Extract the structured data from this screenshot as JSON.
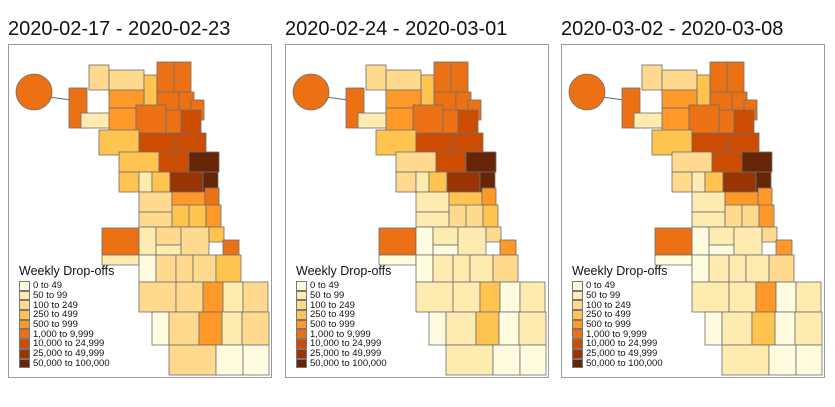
{
  "legend": {
    "title": "Weekly Drop-offs",
    "bins": [
      "0 to 49",
      "50 to 99",
      "100 to 249",
      "250 to 499",
      "500 to 999",
      "1,000 to 9,999",
      "10,000 to 24,999",
      "25,000 to 49,999",
      "50,000 to 100,000"
    ],
    "colors": [
      "#FFFBDF",
      "#FEEBB0",
      "#FED98E",
      "#FEC44F",
      "#FE9929",
      "#EC7014",
      "#CC4C02",
      "#993404",
      "#662506"
    ]
  },
  "panels": [
    {
      "title": "2020-02-17 - 2020-02-23",
      "region_bins": [
        5,
        5,
        2,
        2,
        3,
        5,
        5,
        5,
        5,
        5,
        1,
        4,
        4,
        5,
        5,
        6,
        3,
        6,
        6,
        3,
        6,
        8,
        3,
        1,
        3,
        7,
        8,
        2,
        4,
        5,
        2,
        3,
        3,
        4,
        5,
        1,
        1,
        2,
        1,
        2,
        3,
        5,
        0,
        2,
        2,
        2,
        3,
        2,
        2,
        4,
        1,
        2,
        0,
        2,
        4,
        1,
        2,
        2,
        0,
        0
      ]
    },
    {
      "title": "2020-02-24 - 2020-03-01",
      "region_bins": [
        5,
        5,
        2,
        2,
        3,
        5,
        5,
        5,
        5,
        5,
        1,
        4,
        4,
        5,
        5,
        6,
        3,
        6,
        6,
        2,
        6,
        8,
        2,
        1,
        3,
        7,
        8,
        1,
        3,
        4,
        1,
        2,
        2,
        3,
        5,
        0,
        0,
        1,
        0,
        1,
        2,
        4,
        0,
        1,
        1,
        1,
        2,
        1,
        1,
        3,
        0,
        1,
        0,
        1,
        3,
        0,
        1,
        1,
        0,
        0
      ]
    },
    {
      "title": "2020-03-02 - 2020-03-08",
      "region_bins": [
        5,
        5,
        2,
        2,
        3,
        5,
        5,
        5,
        5,
        5,
        1,
        4,
        4,
        5,
        5,
        6,
        3,
        6,
        6,
        2,
        6,
        8,
        2,
        1,
        3,
        7,
        8,
        1,
        4,
        4,
        1,
        2,
        2,
        4,
        5,
        0,
        0,
        1,
        0,
        1,
        2,
        4,
        0,
        1,
        1,
        1,
        2,
        1,
        1,
        4,
        0,
        1,
        0,
        1,
        3,
        0,
        1,
        1,
        0,
        0
      ]
    }
  ]
}
